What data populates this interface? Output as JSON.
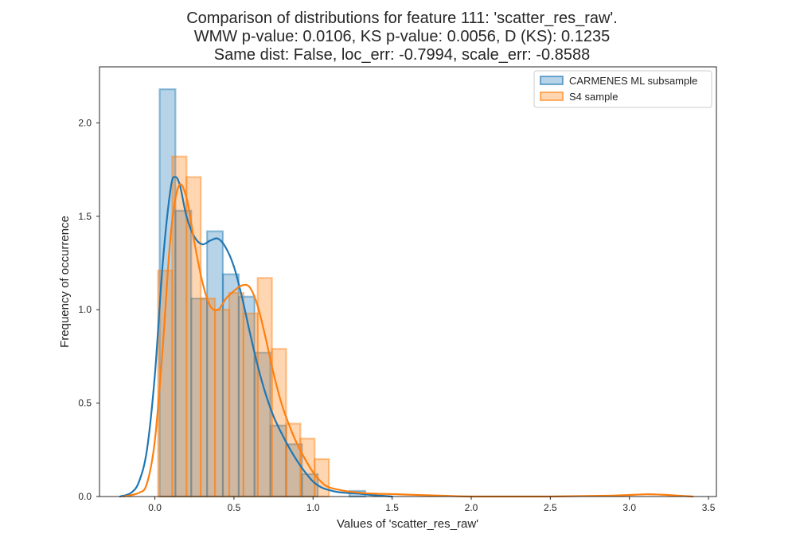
{
  "chart_data": {
    "type": "histogram",
    "title_lines": [
      "Comparison of distributions for feature 111: 'scatter_res_raw'.",
      "WMW p-value: 0.0106, KS p-value: 0.0056, D (KS): 0.1235",
      "Same dist: False, loc_err: -0.7994, scale_err: -0.8588"
    ],
    "xlabel": "Values of 'scatter_res_raw'",
    "ylabel": "Frequency of occurrence",
    "xlim": [
      -0.35,
      3.55
    ],
    "ylim": [
      0,
      2.3
    ],
    "xticks": [
      0.0,
      0.5,
      1.0,
      1.5,
      2.0,
      2.5,
      3.0,
      3.5
    ],
    "xtick_labels": [
      "0.0",
      "0.5",
      "1.0",
      "1.5",
      "2.0",
      "2.5",
      "3.0",
      "3.5"
    ],
    "yticks": [
      0.0,
      0.5,
      1.0,
      1.5,
      2.0
    ],
    "ytick_labels": [
      "0.0",
      "0.5",
      "1.0",
      "1.5",
      "2.0"
    ],
    "grid": false,
    "legend_position": "top-right",
    "series": [
      {
        "name": "CARMENES ML subsample",
        "color": "#1f77b4",
        "bins": [
          {
            "x0": 0.03,
            "x1": 0.13,
            "y": 2.18
          },
          {
            "x0": 0.13,
            "x1": 0.23,
            "y": 1.53
          },
          {
            "x0": 0.23,
            "x1": 0.33,
            "y": 1.06
          },
          {
            "x0": 0.33,
            "x1": 0.43,
            "y": 1.42
          },
          {
            "x0": 0.43,
            "x1": 0.53,
            "y": 1.19
          },
          {
            "x0": 0.53,
            "x1": 0.63,
            "y": 1.07
          },
          {
            "x0": 0.63,
            "x1": 0.73,
            "y": 0.77
          },
          {
            "x0": 0.73,
            "x1": 0.83,
            "y": 0.38
          },
          {
            "x0": 0.83,
            "x1": 0.93,
            "y": 0.28
          },
          {
            "x0": 0.93,
            "x1": 1.03,
            "y": 0.12
          },
          {
            "x0": 1.03,
            "x1": 1.13,
            "y": 0.0
          },
          {
            "x0": 1.13,
            "x1": 1.23,
            "y": 0.0
          },
          {
            "x0": 1.23,
            "x1": 1.33,
            "y": 0.03
          }
        ],
        "kde": {
          "x": [
            -0.22,
            -0.15,
            -0.1,
            -0.05,
            0.0,
            0.05,
            0.1,
            0.13,
            0.16,
            0.2,
            0.25,
            0.3,
            0.35,
            0.4,
            0.45,
            0.5,
            0.55,
            0.6,
            0.65,
            0.7,
            0.75,
            0.8,
            0.85,
            0.9,
            0.95,
            1.0,
            1.05,
            1.1,
            1.15,
            1.2,
            1.25,
            1.3,
            1.35,
            1.4,
            1.5
          ],
          "y": [
            0.0,
            0.02,
            0.08,
            0.25,
            0.65,
            1.25,
            1.65,
            1.71,
            1.66,
            1.5,
            1.39,
            1.35,
            1.37,
            1.38,
            1.33,
            1.23,
            1.07,
            0.88,
            0.7,
            0.55,
            0.43,
            0.34,
            0.26,
            0.19,
            0.13,
            0.08,
            0.05,
            0.035,
            0.025,
            0.02,
            0.018,
            0.015,
            0.01,
            0.006,
            0.0
          ]
        }
      },
      {
        "name": "S4 sample",
        "color": "#ff7f0e",
        "bins": [
          {
            "x0": 0.02,
            "x1": 0.11,
            "y": 1.21
          },
          {
            "x0": 0.11,
            "x1": 0.2,
            "y": 1.82
          },
          {
            "x0": 0.2,
            "x1": 0.29,
            "y": 1.71
          },
          {
            "x0": 0.29,
            "x1": 0.38,
            "y": 1.06
          },
          {
            "x0": 0.38,
            "x1": 0.47,
            "y": 1.0
          },
          {
            "x0": 0.47,
            "x1": 0.56,
            "y": 1.09
          },
          {
            "x0": 0.56,
            "x1": 0.65,
            "y": 0.98
          },
          {
            "x0": 0.65,
            "x1": 0.74,
            "y": 1.17
          },
          {
            "x0": 0.74,
            "x1": 0.83,
            "y": 0.79
          },
          {
            "x0": 0.83,
            "x1": 0.92,
            "y": 0.39
          },
          {
            "x0": 0.92,
            "x1": 1.01,
            "y": 0.31
          },
          {
            "x0": 1.01,
            "x1": 1.1,
            "y": 0.2
          }
        ],
        "kde": {
          "x": [
            -0.2,
            -0.1,
            -0.05,
            0.0,
            0.05,
            0.1,
            0.15,
            0.2,
            0.25,
            0.3,
            0.35,
            0.4,
            0.45,
            0.5,
            0.55,
            0.6,
            0.65,
            0.7,
            0.75,
            0.8,
            0.85,
            0.9,
            0.95,
            1.0,
            1.05,
            1.1,
            1.2,
            1.3,
            1.4,
            1.5,
            1.6,
            1.8,
            2.0,
            2.5,
            2.9,
            3.1,
            3.2,
            3.3,
            3.4
          ],
          "y": [
            0.0,
            0.02,
            0.07,
            0.3,
            0.8,
            1.4,
            1.66,
            1.6,
            1.36,
            1.15,
            1.02,
            1.0,
            1.06,
            1.1,
            1.13,
            1.12,
            1.02,
            0.85,
            0.66,
            0.5,
            0.38,
            0.28,
            0.2,
            0.13,
            0.08,
            0.05,
            0.03,
            0.02,
            0.015,
            0.013,
            0.01,
            0.005,
            0.0,
            0.0,
            0.005,
            0.012,
            0.01,
            0.005,
            0.0
          ]
        }
      }
    ]
  }
}
